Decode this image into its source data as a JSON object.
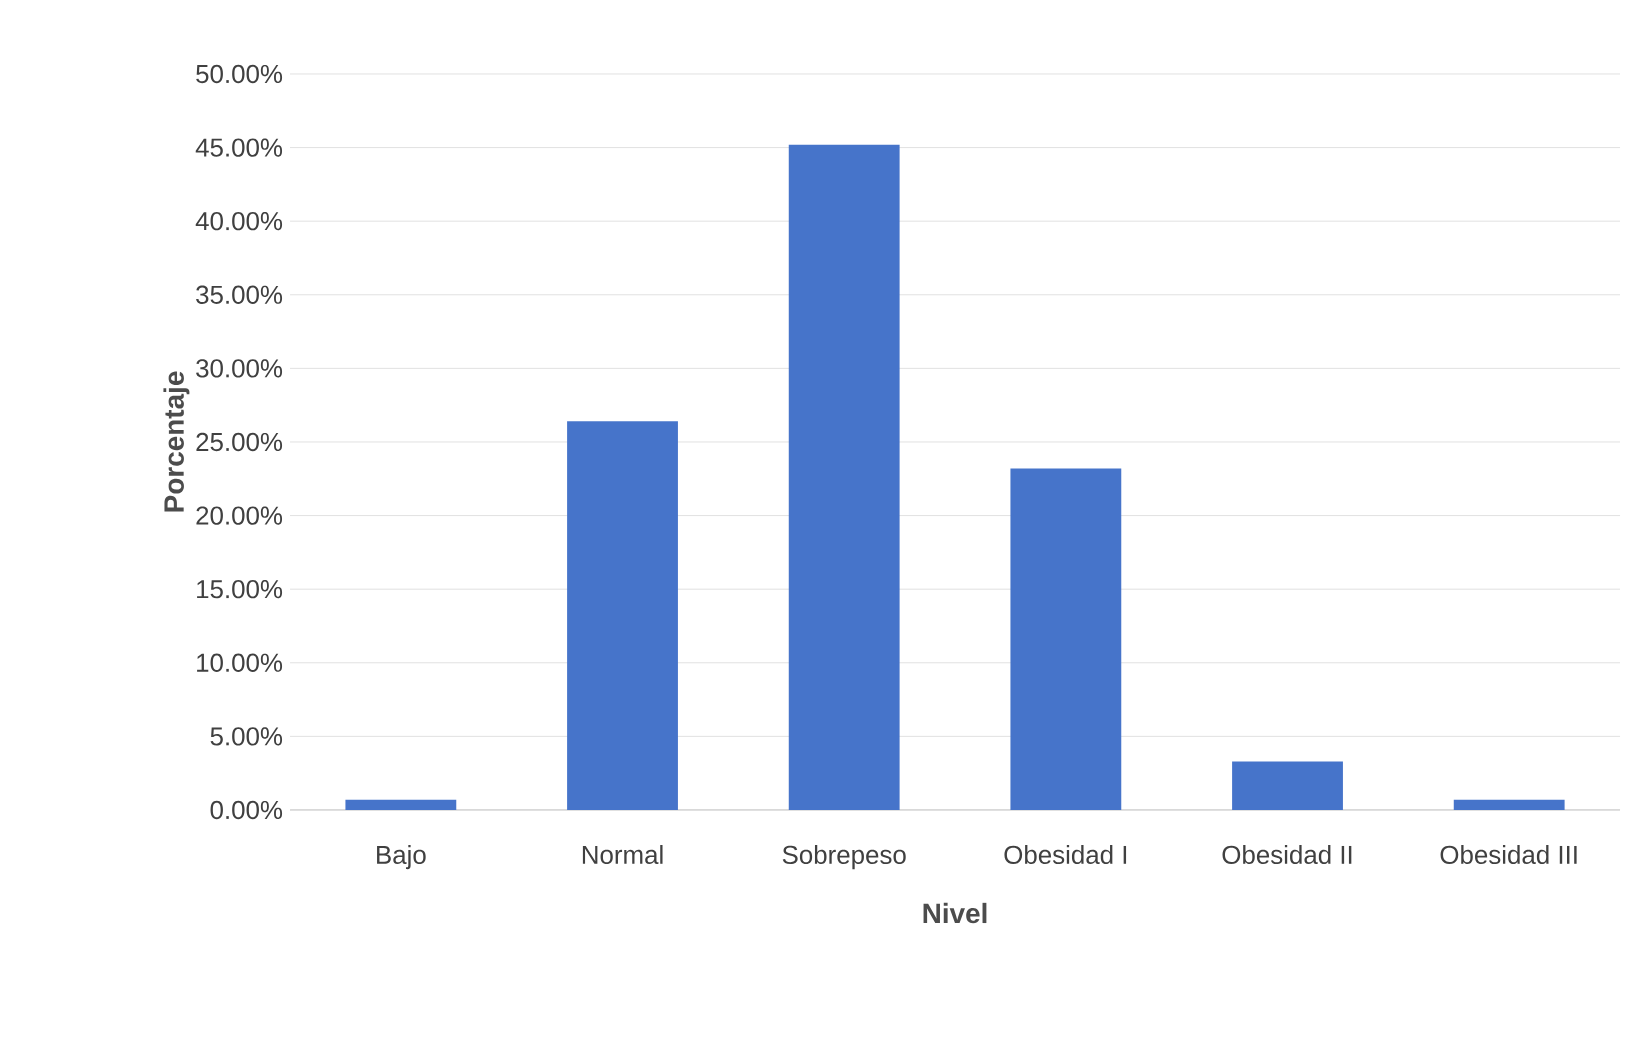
{
  "chart_data": {
    "type": "bar",
    "xlabel": "Nivel",
    "ylabel": "Porcentaje",
    "categories": [
      "Bajo",
      "Normal",
      "Sobrepeso",
      "Obesidad I",
      "Obesidad II",
      "Obesidad III"
    ],
    "values": [
      0.7,
      26.4,
      45.2,
      23.2,
      3.3,
      0.7
    ],
    "color": "#4674ca",
    "ylim": [
      0,
      50
    ],
    "yticks": [
      {
        "value": 0,
        "label": "0.00%"
      },
      {
        "value": 5,
        "label": "5.00%"
      },
      {
        "value": 10,
        "label": "10.00%"
      },
      {
        "value": 15,
        "label": "15.00%"
      },
      {
        "value": 20,
        "label": "20.00%"
      },
      {
        "value": 25,
        "label": "25.00%"
      },
      {
        "value": 30,
        "label": "30.00%"
      },
      {
        "value": 35,
        "label": "35.00%"
      },
      {
        "value": 40,
        "label": "40.00%"
      },
      {
        "value": 45,
        "label": "45.00%"
      },
      {
        "value": 50,
        "label": "50.00%"
      }
    ],
    "grid": "y"
  }
}
